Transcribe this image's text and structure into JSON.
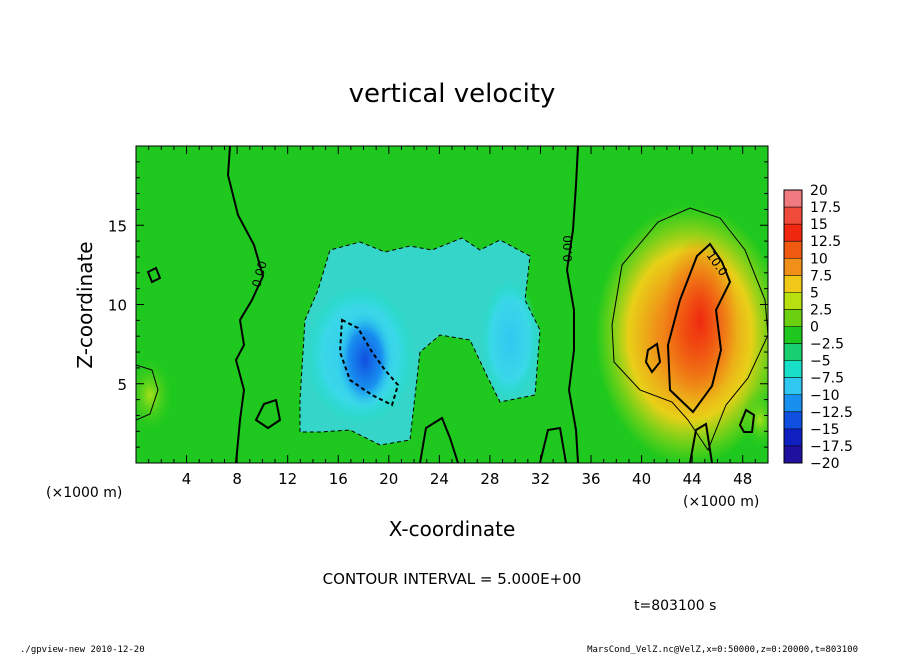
{
  "title": "vertical velocity",
  "footer": {
    "left": "./gpview-new   2010-12-20",
    "right": "MarsCond_VelZ.nc@VelZ,x=0:50000,z=0:20000,t=803100"
  },
  "contour_interval": "CONTOUR INTERVAL = 5.000E+00",
  "time_label": "t=803100 s",
  "chart_data": {
    "type": "heatmap",
    "title": "vertical velocity",
    "xlabel": "X-coordinate",
    "ylabel": "Z-coordinate",
    "x_unit": "(×1000 m)",
    "y_unit": "(×1000 m)",
    "xlim": [
      0,
      50
    ],
    "ylim": [
      0,
      20
    ],
    "x_ticks": [
      4,
      8,
      12,
      16,
      20,
      24,
      28,
      32,
      36,
      40,
      44,
      48
    ],
    "y_ticks": [
      5,
      10,
      15
    ],
    "contour_labels": [
      "0.00",
      "0.00",
      "10.0"
    ],
    "colorbar": {
      "labels": [
        "20",
        "17.5",
        "15",
        "12.5",
        "10",
        "7.5",
        "5",
        "2.5",
        "0",
        "−2.5",
        "−5",
        "−7.5",
        "−10",
        "−12.5",
        "−15",
        "−17.5",
        "−20"
      ],
      "colors": [
        "#f07a80",
        "#f04a3a",
        "#f02810",
        "#f05a10",
        "#f09018",
        "#f0c818",
        "#b8e010",
        "#6ad010",
        "#1ec81e",
        "#18d070",
        "#18e0c8",
        "#30c8f0",
        "#1890f0",
        "#1050e0",
        "#1020c0",
        "#2010a0",
        "#8010c0"
      ]
    },
    "features": [
      {
        "name": "downdraft",
        "x_center": 20,
        "z_center": 7,
        "min_value": -12.5
      },
      {
        "name": "updraft",
        "x_center": 44,
        "z_center": 7,
        "max_value": 12.5
      }
    ]
  }
}
